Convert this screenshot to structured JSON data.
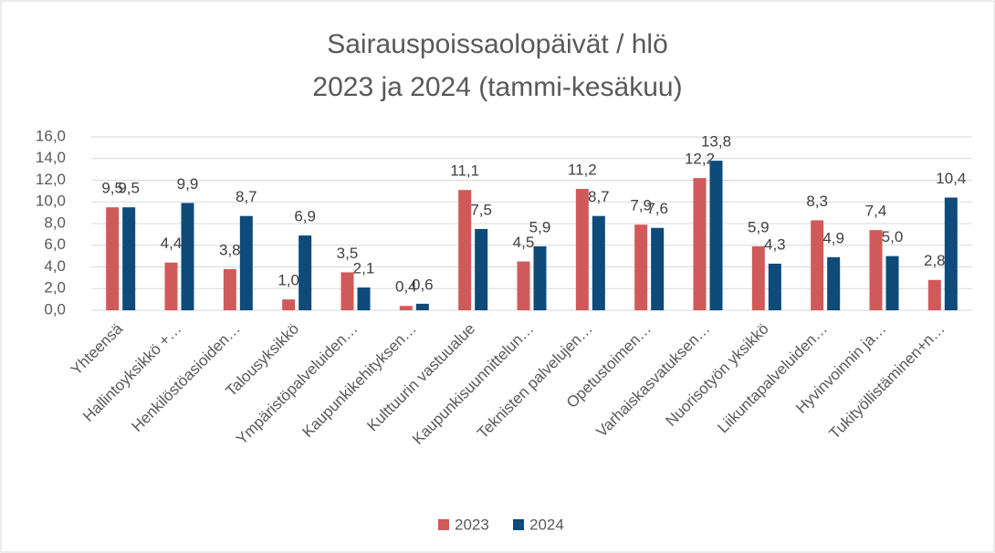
{
  "chart_data": {
    "type": "bar",
    "title": [
      "Sairauspoissaolopäivät  / hlö",
      "2023 ja 2024 (tammi-kesäkuu)"
    ],
    "categories": [
      "Yhteensä",
      "Hallintoyksikkö +…",
      "Henkilöstöasioiden…",
      "Talousyksikkö",
      "Ympäristöpalveluiden…",
      "Kaupunkikehityksen…",
      "Kulttuurin vastuualue",
      "Kaupunkisuunnittelun…",
      "Teknisten palvelujen…",
      "Opetustoimen…",
      "Varhaiskasvatuksen…",
      "Nuorisotyön yksikkö",
      "Liikuntapalveluiden…",
      "Hyvinvoinnin ja…",
      "Tukityöllistäminen+n…"
    ],
    "series": [
      {
        "name": "2023",
        "color": "#d05a5a",
        "values": [
          9.5,
          4.4,
          3.8,
          1.0,
          3.5,
          0.4,
          11.1,
          4.5,
          11.2,
          7.9,
          12.2,
          5.9,
          8.3,
          7.4,
          2.8
        ],
        "value_labels": [
          "9,5",
          "4,4",
          "3,8",
          "1,0",
          "3,5",
          "0,4",
          "11,1",
          "4,5",
          "11,2",
          "7,9",
          "12,2",
          "5,9",
          "8,3",
          "7,4",
          "2,8"
        ]
      },
      {
        "name": "2024",
        "color": "#0e4a7a",
        "values": [
          9.5,
          9.9,
          8.7,
          6.9,
          2.1,
          0.6,
          7.5,
          5.9,
          8.7,
          7.6,
          13.8,
          4.3,
          4.9,
          5.0,
          10.4
        ],
        "value_labels": [
          "9,5",
          "9,9",
          "8,7",
          "6,9",
          "2,1",
          "0,6",
          "7,5",
          "5,9",
          "8,7",
          "7,6",
          "13,8",
          "4,3",
          "4,9",
          "5,0",
          "10,4"
        ]
      }
    ],
    "ylim": [
      0,
      16
    ],
    "yticks": [
      {
        "value": 0,
        "label": "0,0"
      },
      {
        "value": 2,
        "label": "2,0"
      },
      {
        "value": 4,
        "label": "4,0"
      },
      {
        "value": 6,
        "label": "6,0"
      },
      {
        "value": 8,
        "label": "8,0"
      },
      {
        "value": 10,
        "label": "10,0"
      },
      {
        "value": 12,
        "label": "12,0"
      },
      {
        "value": 14,
        "label": "14,0"
      },
      {
        "value": 16,
        "label": "16,0"
      }
    ],
    "grid": true,
    "legend": "bottom"
  }
}
